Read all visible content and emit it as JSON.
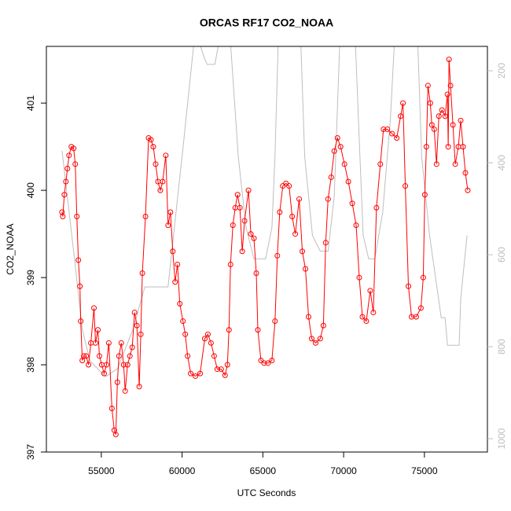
{
  "chart_data": {
    "type": "line",
    "title": "ORCAS RF17 CO2_NOAA",
    "xlabel": "UTC Seconds",
    "ylabel": "CO2_NOAA",
    "xlim": [
      51600,
      78900
    ],
    "xticks": [
      55000,
      60000,
      65000,
      70000,
      75000
    ],
    "ylim": [
      397,
      401.65
    ],
    "yticks": [
      397,
      398,
      399,
      400,
      401
    ],
    "y2lim": [
      1029,
      147
    ],
    "y2ticks": [
      200,
      400,
      600,
      800,
      1000
    ],
    "series": [
      {
        "color": "#ff0000",
        "markers": true,
        "x": [
          52566,
          52614,
          52711,
          52808,
          52904,
          53001,
          53146,
          53290,
          53387,
          53484,
          53580,
          53677,
          53725,
          53822,
          53918,
          54063,
          54208,
          54353,
          54546,
          54643,
          54788,
          54884,
          55029,
          55174,
          55319,
          55464,
          55657,
          55802,
          55899,
          55995,
          56092,
          56237,
          56382,
          56478,
          56623,
          56768,
          56913,
          57058,
          57203,
          57348,
          57444,
          57541,
          57734,
          57927,
          58072,
          58217,
          58362,
          58507,
          58652,
          58797,
          58990,
          59135,
          59280,
          59425,
          59570,
          59714,
          59859,
          60053,
          60197,
          60342,
          60536,
          60825,
          61115,
          61405,
          61598,
          61791,
          61985,
          62178,
          62419,
          62661,
          62806,
          62902,
          62999,
          63144,
          63289,
          63434,
          63578,
          63723,
          63868,
          64110,
          64255,
          64448,
          64593,
          64689,
          64883,
          65076,
          65318,
          65559,
          65752,
          65897,
          66042,
          66235,
          66429,
          66622,
          66815,
          67008,
          67249,
          67442,
          67636,
          67829,
          68022,
          68264,
          68553,
          68747,
          68891,
          69036,
          69230,
          69423,
          69616,
          69809,
          70051,
          70292,
          70534,
          70775,
          70968,
          71162,
          71403,
          71645,
          71838,
          72031,
          72272,
          72466,
          72707,
          72997,
          73286,
          73528,
          73673,
          73818,
          74011,
          74204,
          74494,
          74784,
          74929,
          75026,
          75122,
          75219,
          75364,
          75460,
          75605,
          75750,
          75895,
          76088,
          76281,
          76426,
          76474,
          76523,
          76619,
          76764,
          76909,
          77102,
          77247,
          77392,
          77537,
          77682
        ],
        "values": [
          399.75,
          399.7,
          399.95,
          400.1,
          400.25,
          400.4,
          400.5,
          400.48,
          400.3,
          399.7,
          399.2,
          398.9,
          398.5,
          398.05,
          398.1,
          398.1,
          398.0,
          398.25,
          398.65,
          398.25,
          398.4,
          398.1,
          398.0,
          397.9,
          398.0,
          398.25,
          397.5,
          397.25,
          397.2,
          397.8,
          398.1,
          398.25,
          398.0,
          397.7,
          398.0,
          398.1,
          398.2,
          398.6,
          398.45,
          397.75,
          398.35,
          399.05,
          399.7,
          400.6,
          400.58,
          400.5,
          400.3,
          400.1,
          400.0,
          400.1,
          400.4,
          399.6,
          399.75,
          399.3,
          398.95,
          399.15,
          398.7,
          398.5,
          398.35,
          398.1,
          397.9,
          397.87,
          397.9,
          398.3,
          398.35,
          398.25,
          398.1,
          397.95,
          397.95,
          397.88,
          398.0,
          398.4,
          399.15,
          399.6,
          399.8,
          399.95,
          399.8,
          399.3,
          399.65,
          400.0,
          399.5,
          399.45,
          399.05,
          398.4,
          398.05,
          398.02,
          398.02,
          398.05,
          398.5,
          399.25,
          399.75,
          400.05,
          400.08,
          400.05,
          399.7,
          399.5,
          399.9,
          399.3,
          399.1,
          398.55,
          398.3,
          398.25,
          398.3,
          398.45,
          399.4,
          399.9,
          400.15,
          400.45,
          400.6,
          400.5,
          400.3,
          400.1,
          399.85,
          399.6,
          399.0,
          398.55,
          398.5,
          398.85,
          398.6,
          399.8,
          400.3,
          400.7,
          400.7,
          400.65,
          400.6,
          400.85,
          401.0,
          400.05,
          398.9,
          398.55,
          398.55,
          398.65,
          399.0,
          399.95,
          400.5,
          401.2,
          401.0,
          400.75,
          400.7,
          400.3,
          400.85,
          400.92,
          400.85,
          401.1,
          400.5,
          401.5,
          401.2,
          400.75,
          400.3,
          400.5,
          400.8,
          400.5,
          400.2,
          400.0
        ]
      },
      {
        "color": "#bebebe",
        "axis": "y2",
        "markers": false,
        "x": [
          52570,
          53340,
          53820,
          54300,
          55270,
          56000,
          56960,
          57690,
          59130,
          59470,
          60100,
          60730,
          61070,
          61400,
          61550,
          62030,
          62270,
          62760,
          63000,
          63480,
          63960,
          64450,
          65170,
          65560,
          65750,
          65950,
          66620,
          67350,
          67590,
          68070,
          68550,
          69040,
          69420,
          69760,
          70240,
          70730,
          70970,
          71210,
          71550,
          71930,
          72420,
          72900,
          73140,
          73870,
          74590,
          74830,
          75320,
          75800,
          76040,
          76280,
          76430,
          77150,
          77250,
          77640
        ],
        "values": [
          374,
          609,
          762,
          831,
          865,
          848,
          762,
          670,
          670,
          558,
          353,
          140,
          140,
          174,
          186,
          186,
          140,
          130,
          140,
          387,
          541,
          609,
          609,
          541,
          387,
          140,
          130,
          140,
          387,
          558,
          592,
          592,
          473,
          140,
          130,
          140,
          353,
          558,
          609,
          609,
          507,
          302,
          140,
          130,
          140,
          387,
          558,
          677,
          737,
          737,
          797,
          797,
          694,
          558
        ]
      }
    ]
  }
}
